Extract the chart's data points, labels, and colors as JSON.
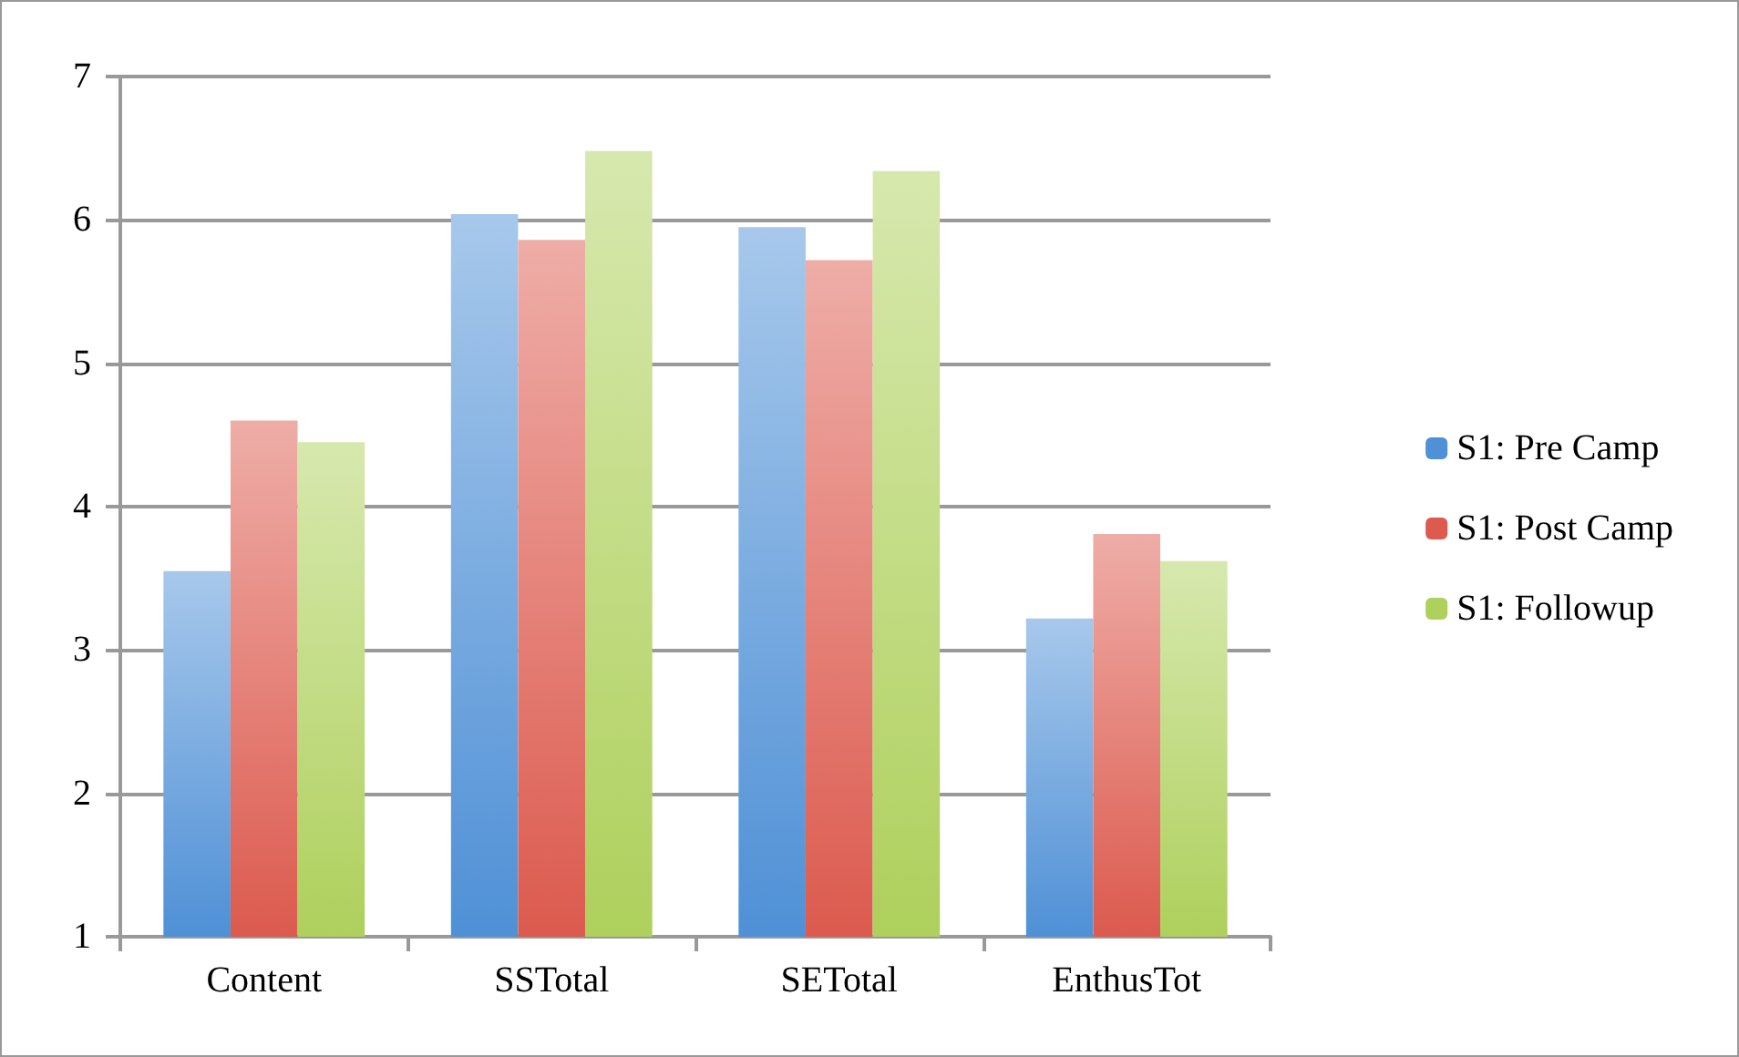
{
  "chart_data": {
    "type": "bar",
    "categories": [
      "Content",
      "SSTotal",
      "SETotal",
      "EnthusTot"
    ],
    "series": [
      {
        "name": "S1: Pre Camp",
        "color": "#4f90d6",
        "values": [
          3.55,
          6.04,
          5.95,
          3.22
        ]
      },
      {
        "name": "S1: Post Camp",
        "color": "#dc5a4e",
        "values": [
          4.6,
          5.86,
          5.72,
          3.81
        ]
      },
      {
        "name": "S1: Followup",
        "color": "#aed05c",
        "values": [
          4.45,
          6.48,
          6.34,
          3.62
        ]
      }
    ],
    "ylim": [
      1,
      7
    ],
    "yticks": [
      1,
      2,
      3,
      4,
      5,
      6,
      7
    ],
    "grid": "y",
    "legend": "right"
  }
}
